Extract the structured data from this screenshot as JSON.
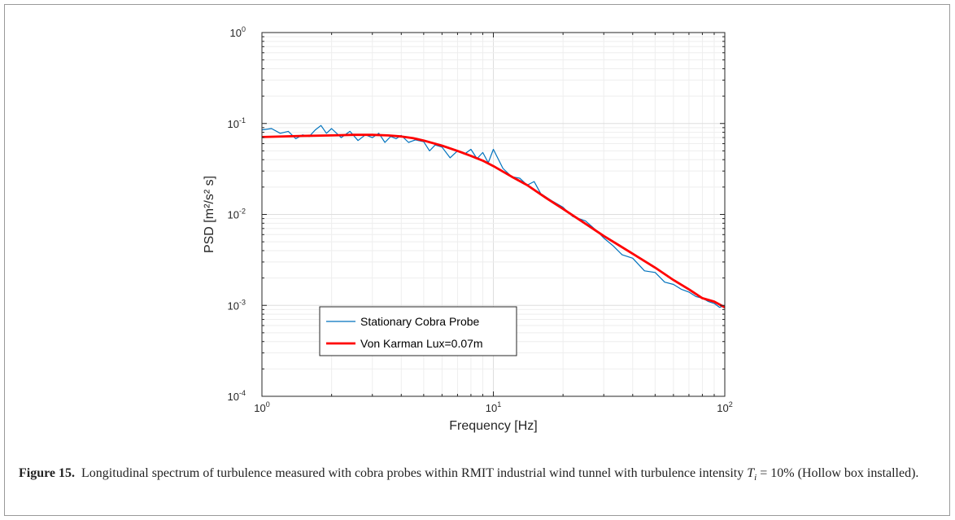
{
  "chart_data": {
    "type": "line",
    "title": "",
    "xlabel": "Frequency [Hz]",
    "ylabel": "PSD [m²/s² s]",
    "xscale": "log",
    "yscale": "log",
    "xlim": [
      1,
      100
    ],
    "ylim": [
      0.0001,
      1
    ],
    "grid": true,
    "legend_placement": "lower-left",
    "x_ticks": [
      {
        "base": "10",
        "exp": "0",
        "value": 1
      },
      {
        "base": "10",
        "exp": "1",
        "value": 10
      },
      {
        "base": "10",
        "exp": "2",
        "value": 100
      }
    ],
    "y_ticks": [
      {
        "base": "10",
        "exp": "0",
        "value": 1
      },
      {
        "base": "10",
        "exp": "-1",
        "value": 0.1
      },
      {
        "base": "10",
        "exp": "-2",
        "value": 0.01
      },
      {
        "base": "10",
        "exp": "-3",
        "value": 0.001
      },
      {
        "base": "10",
        "exp": "-4",
        "value": 0.0001
      }
    ],
    "series": [
      {
        "name": "Stationary Cobra Probe",
        "color": "#0072BD",
        "x": [
          1.0,
          1.1,
          1.2,
          1.3,
          1.4,
          1.5,
          1.6,
          1.7,
          1.8,
          1.9,
          2.0,
          2.2,
          2.4,
          2.6,
          2.8,
          3.0,
          3.2,
          3.4,
          3.6,
          3.8,
          4.0,
          4.3,
          4.6,
          5.0,
          5.3,
          5.6,
          6.0,
          6.5,
          7.0,
          7.5,
          8.0,
          8.5,
          9.0,
          9.5,
          10.0,
          11.0,
          12.0,
          13.0,
          14.0,
          15.0,
          16.0,
          18.0,
          20.0,
          22.0,
          25.0,
          28.0,
          30.0,
          33.0,
          36.0,
          40.0,
          45.0,
          50.0,
          55.0,
          60.0,
          65.0,
          70.0,
          75.0,
          80.0,
          85.0,
          90.0,
          95.0,
          100.0
        ],
        "y": [
          0.085,
          0.088,
          0.078,
          0.082,
          0.068,
          0.075,
          0.072,
          0.085,
          0.095,
          0.078,
          0.088,
          0.07,
          0.082,
          0.065,
          0.075,
          0.07,
          0.078,
          0.062,
          0.072,
          0.068,
          0.074,
          0.062,
          0.066,
          0.063,
          0.05,
          0.058,
          0.055,
          0.042,
          0.05,
          0.046,
          0.052,
          0.041,
          0.048,
          0.037,
          0.052,
          0.032,
          0.026,
          0.025,
          0.021,
          0.023,
          0.017,
          0.014,
          0.012,
          0.0095,
          0.0085,
          0.0066,
          0.0055,
          0.0045,
          0.0036,
          0.0033,
          0.0024,
          0.0023,
          0.0018,
          0.0017,
          0.0015,
          0.0014,
          0.00125,
          0.0012,
          0.0011,
          0.00105,
          0.00095,
          0.001
        ]
      },
      {
        "name": "Von Karman Lux=0.07m",
        "color": "#FF0000",
        "x": [
          1.0,
          1.5,
          2.0,
          2.5,
          3.0,
          3.5,
          4.0,
          4.5,
          5.0,
          6.0,
          7.0,
          8.0,
          9.0,
          10.0,
          12.0,
          14.0,
          17.0,
          20.0,
          25.0,
          30.0,
          40.0,
          50.0,
          60.0,
          70.0,
          80.0,
          90.0,
          100.0
        ],
        "y": [
          0.071,
          0.073,
          0.074,
          0.075,
          0.075,
          0.074,
          0.072,
          0.069,
          0.065,
          0.057,
          0.05,
          0.044,
          0.039,
          0.034,
          0.026,
          0.021,
          0.015,
          0.0115,
          0.0079,
          0.0058,
          0.0037,
          0.0026,
          0.0019,
          0.0015,
          0.0012,
          0.0011,
          0.00095
        ]
      }
    ]
  },
  "caption": {
    "label": "Figure 15.",
    "text_before": "Longitudinal spectrum of turbulence measured with cobra probes within RMIT industrial wind tunnel with turbulence intensity",
    "math_var": "T",
    "math_sub": "i",
    "math_rest": " = 10%",
    "text_after": "(Hollow box installed)."
  }
}
